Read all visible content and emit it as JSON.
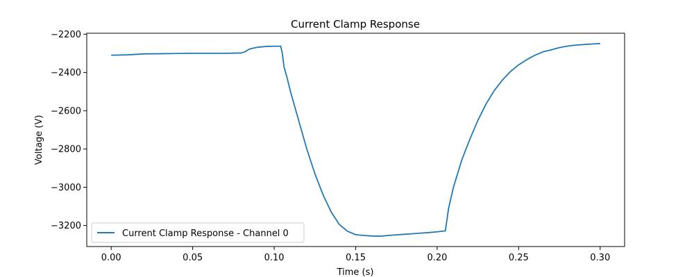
{
  "chart_data": {
    "type": "line",
    "title": "Current Clamp Response",
    "xlabel": "Time (s)",
    "ylabel": "Voltage (V)",
    "xlim": [
      -0.015,
      0.315
    ],
    "ylim": [
      -3310,
      -2195
    ],
    "xticks": [
      0.0,
      0.05,
      0.1,
      0.15,
      0.2,
      0.25,
      0.3
    ],
    "xtick_labels": [
      "0.00",
      "0.05",
      "0.10",
      "0.15",
      "0.20",
      "0.25",
      "0.30"
    ],
    "yticks": [
      -3200,
      -3000,
      -2800,
      -2600,
      -2400,
      -2200
    ],
    "ytick_labels": [
      "−3200",
      "−3000",
      "−2800",
      "−2600",
      "−2400",
      "−2200"
    ],
    "grid": false,
    "legend_position": "lower-left",
    "series": [
      {
        "name": "Current Clamp Response - Channel 0",
        "color": "#1f77b4",
        "points": [
          [
            0.0,
            -2310
          ],
          [
            0.01,
            -2308
          ],
          [
            0.02,
            -2303
          ],
          [
            0.03,
            -2302
          ],
          [
            0.04,
            -2301
          ],
          [
            0.05,
            -2300
          ],
          [
            0.06,
            -2300
          ],
          [
            0.07,
            -2300
          ],
          [
            0.08,
            -2298
          ],
          [
            0.082,
            -2292
          ],
          [
            0.085,
            -2277
          ],
          [
            0.09,
            -2268
          ],
          [
            0.095,
            -2264
          ],
          [
            0.1,
            -2263
          ],
          [
            0.104,
            -2263
          ],
          [
            0.105,
            -2300
          ],
          [
            0.106,
            -2370
          ],
          [
            0.108,
            -2430
          ],
          [
            0.11,
            -2500
          ],
          [
            0.115,
            -2650
          ],
          [
            0.12,
            -2800
          ],
          [
            0.125,
            -2930
          ],
          [
            0.13,
            -3040
          ],
          [
            0.135,
            -3130
          ],
          [
            0.14,
            -3195
          ],
          [
            0.145,
            -3230
          ],
          [
            0.15,
            -3248
          ],
          [
            0.155,
            -3252
          ],
          [
            0.16,
            -3255
          ],
          [
            0.165,
            -3256
          ],
          [
            0.17,
            -3252
          ],
          [
            0.175,
            -3249
          ],
          [
            0.18,
            -3246
          ],
          [
            0.185,
            -3243
          ],
          [
            0.19,
            -3240
          ],
          [
            0.195,
            -3237
          ],
          [
            0.2,
            -3233
          ],
          [
            0.205,
            -3228
          ],
          [
            0.206,
            -3170
          ],
          [
            0.207,
            -3110
          ],
          [
            0.21,
            -3000
          ],
          [
            0.215,
            -2860
          ],
          [
            0.22,
            -2750
          ],
          [
            0.225,
            -2650
          ],
          [
            0.23,
            -2565
          ],
          [
            0.235,
            -2495
          ],
          [
            0.24,
            -2440
          ],
          [
            0.245,
            -2395
          ],
          [
            0.25,
            -2360
          ],
          [
            0.255,
            -2333
          ],
          [
            0.26,
            -2310
          ],
          [
            0.265,
            -2292
          ],
          [
            0.27,
            -2282
          ],
          [
            0.275,
            -2270
          ],
          [
            0.28,
            -2262
          ],
          [
            0.285,
            -2257
          ],
          [
            0.29,
            -2254
          ],
          [
            0.295,
            -2251
          ],
          [
            0.3,
            -2249
          ]
        ]
      }
    ]
  }
}
